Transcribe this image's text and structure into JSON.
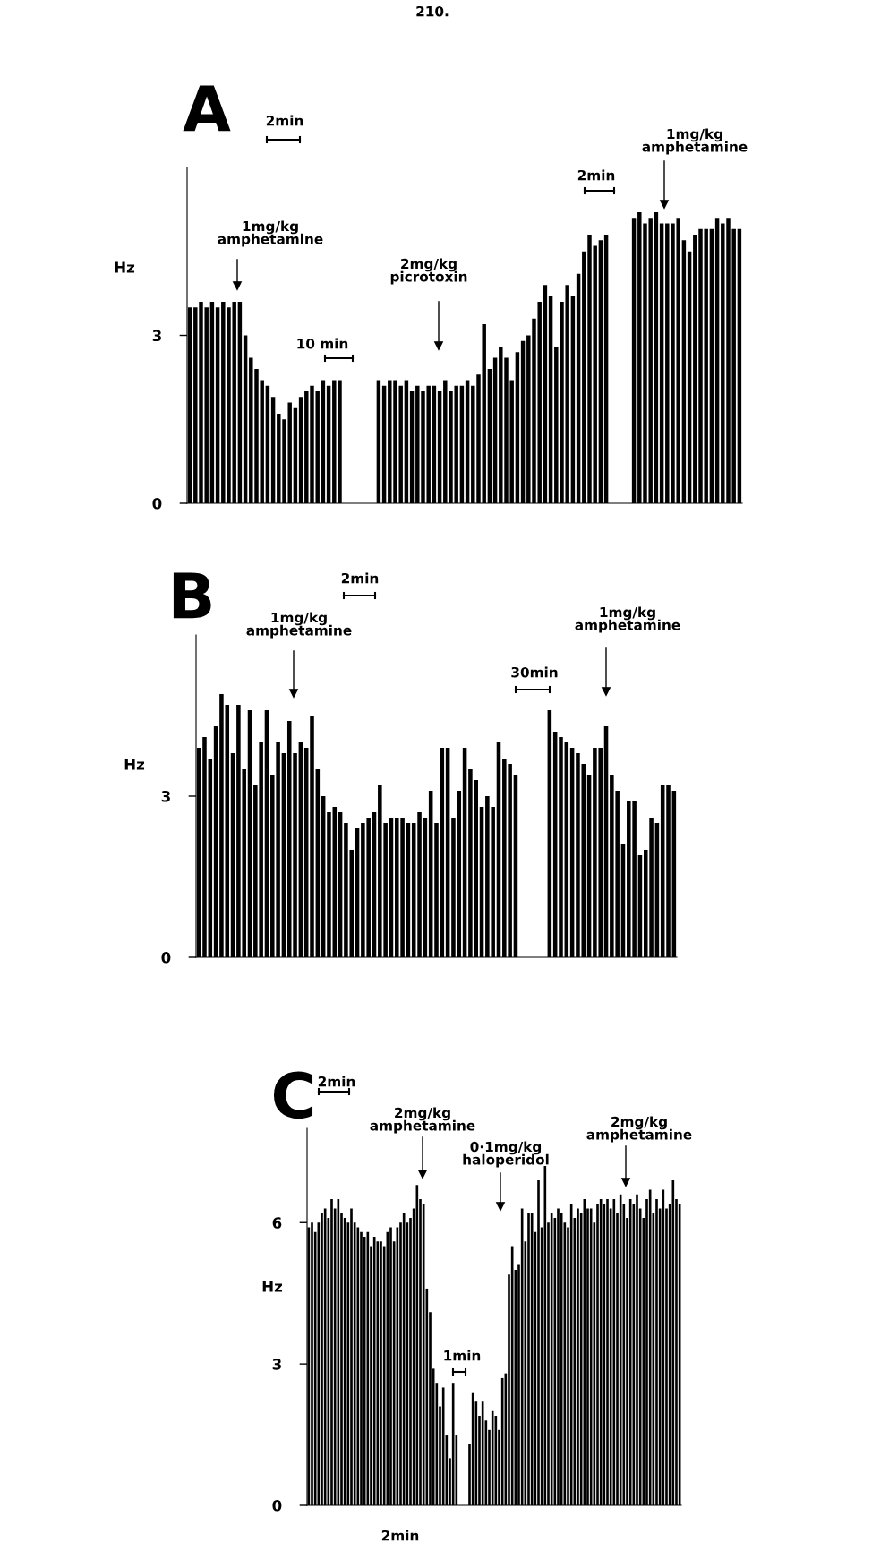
{
  "chart_data": [
    {
      "type": "bar",
      "title": "A",
      "ylabel": "Hz",
      "color": "#000000",
      "ylim": [
        0,
        6
      ],
      "yticks": [
        0,
        3
      ],
      "tick_labels": "y",
      "annotations": [
        "210.",
        "2min",
        "1mg/kg\namphetamine",
        "10 min",
        "2mg/kg\npicrotoxin",
        "2min",
        "1mg/kg\namphetamine"
      ],
      "categories": [
        null,
        null,
        null,
        null,
        null,
        null,
        null,
        null,
        null,
        null,
        null,
        null,
        null,
        null,
        null,
        null,
        null,
        null,
        null,
        null,
        null,
        null,
        null,
        null,
        null,
        null,
        null,
        null,
        null,
        null,
        null,
        null,
        null,
        null,
        null,
        null,
        null,
        null,
        null,
        null,
        null,
        null,
        null,
        null,
        null,
        null,
        null,
        null,
        null,
        null,
        null,
        null,
        null,
        null,
        null,
        null,
        null,
        null,
        null,
        null,
        null,
        null,
        null,
        null,
        null,
        null,
        null,
        null,
        null,
        null,
        null,
        null,
        null,
        null,
        null,
        null,
        null,
        null,
        null,
        null,
        null,
        null,
        null,
        null,
        null,
        null,
        null,
        null,
        null,
        null,
        null,
        null,
        null,
        null,
        null,
        null,
        null,
        null,
        null,
        null
      ],
      "values": [
        3.5,
        3.5,
        3.6,
        3.5,
        3.6,
        3.5,
        3.6,
        3.5,
        3.6,
        3.6,
        3.0,
        2.6,
        2.4,
        2.2,
        2.1,
        1.9,
        1.6,
        1.5,
        1.8,
        1.7,
        1.9,
        2.0,
        2.1,
        2.0,
        2.2,
        2.1,
        2.2,
        2.2,
        null,
        null,
        null,
        null,
        null,
        null,
        2.2,
        2.1,
        2.2,
        2.2,
        2.1,
        2.2,
        2.0,
        2.1,
        2.0,
        2.1,
        2.1,
        2.0,
        2.2,
        2.0,
        2.1,
        2.1,
        2.2,
        2.1,
        2.3,
        3.2,
        2.4,
        2.6,
        2.8,
        2.6,
        2.2,
        2.7,
        2.9,
        3.0,
        3.3,
        3.6,
        3.9,
        3.7,
        2.8,
        3.6,
        3.9,
        3.7,
        4.1,
        4.5,
        4.8,
        4.6,
        4.7,
        4.8,
        null,
        null,
        null,
        null,
        5.1,
        5.2,
        5.0,
        5.1,
        5.2,
        5.0,
        5.0,
        5.0,
        5.1,
        4.7,
        4.5,
        4.8,
        4.9,
        4.9,
        4.9,
        5.1,
        5.0,
        5.1,
        4.9,
        4.9
      ]
    },
    {
      "type": "bar",
      "title": "B",
      "ylabel": "Hz",
      "color": "#000000",
      "ylim": [
        0,
        6
      ],
      "yticks": [
        0,
        3
      ],
      "tick_labels": "y",
      "annotations": [
        "2min",
        "1mg/kg\namphetamine",
        "30min",
        "1mg/kg\namphetamine"
      ],
      "categories": [
        null,
        null,
        null,
        null,
        null,
        null,
        null,
        null,
        null,
        null,
        null,
        null,
        null,
        null,
        null,
        null,
        null,
        null,
        null,
        null,
        null,
        null,
        null,
        null,
        null,
        null,
        null,
        null,
        null,
        null,
        null,
        null,
        null,
        null,
        null,
        null,
        null,
        null,
        null,
        null,
        null,
        null,
        null,
        null,
        null,
        null,
        null,
        null,
        null,
        null,
        null,
        null,
        null,
        null,
        null,
        null,
        null,
        null,
        null,
        null,
        null,
        null,
        null,
        null,
        null,
        null,
        null,
        null,
        null,
        null,
        null,
        null,
        null,
        null,
        null,
        null,
        null,
        null,
        null,
        null,
        null,
        null,
        null,
        null,
        null
      ],
      "values": [
        3.9,
        4.1,
        3.7,
        4.3,
        4.9,
        4.7,
        3.8,
        4.7,
        3.5,
        4.6,
        3.2,
        4.0,
        4.6,
        3.4,
        4.0,
        3.8,
        4.4,
        3.8,
        4.0,
        3.9,
        4.5,
        3.5,
        3.0,
        2.7,
        2.8,
        2.7,
        2.5,
        2.0,
        2.4,
        2.5,
        2.6,
        2.7,
        3.2,
        2.5,
        2.6,
        2.6,
        2.6,
        2.5,
        2.5,
        2.7,
        2.6,
        3.1,
        2.5,
        3.9,
        3.9,
        2.6,
        3.1,
        3.9,
        3.5,
        3.3,
        2.8,
        3.0,
        2.8,
        4.0,
        3.7,
        3.6,
        3.4,
        null,
        null,
        null,
        null,
        null,
        4.6,
        4.2,
        4.1,
        4.0,
        3.9,
        3.8,
        3.6,
        3.4,
        3.9,
        3.9,
        4.3,
        3.4,
        3.1,
        2.1,
        2.9,
        2.9,
        1.9,
        2.0,
        2.6,
        2.5,
        3.2,
        3.2,
        3.1
      ]
    },
    {
      "type": "bar",
      "title": "C",
      "ylabel": "Hz",
      "color": "#000000",
      "ylim": [
        0,
        8
      ],
      "yticks": [
        0,
        3,
        6
      ],
      "tick_labels": "y",
      "annotations": [
        "2min",
        "2mg/kg\namphetamine",
        "0·1mg/kg\nhaloperidol",
        "2mg/kg\namphetamine",
        "1min",
        "2min"
      ],
      "categories": [
        null,
        null,
        null,
        null,
        null,
        null,
        null,
        null,
        null,
        null,
        null,
        null,
        null,
        null,
        null,
        null,
        null,
        null,
        null,
        null,
        null,
        null,
        null,
        null,
        null,
        null,
        null,
        null,
        null,
        null,
        null,
        null,
        null,
        null,
        null,
        null,
        null,
        null,
        null,
        null,
        null,
        null,
        null,
        null,
        null,
        null,
        null,
        null,
        null,
        null,
        null,
        null,
        null,
        null,
        null,
        null,
        null,
        null,
        null,
        null,
        null,
        null,
        null,
        null,
        null,
        null,
        null,
        null,
        null,
        null,
        null,
        null,
        null,
        null,
        null,
        null,
        null,
        null,
        null,
        null,
        null,
        null,
        null,
        null,
        null,
        null,
        null,
        null,
        null,
        null,
        null,
        null,
        null,
        null,
        null,
        null,
        null,
        null,
        null,
        null,
        null,
        null,
        null,
        null,
        null,
        null,
        null,
        null,
        null,
        null,
        null,
        null,
        null,
        null
      ],
      "values": [
        5.9,
        6.0,
        5.8,
        6.0,
        6.2,
        6.3,
        6.1,
        6.5,
        6.3,
        6.5,
        6.2,
        6.1,
        6.0,
        6.3,
        6.0,
        5.9,
        5.8,
        5.7,
        5.8,
        5.5,
        5.7,
        5.6,
        5.6,
        5.5,
        5.8,
        5.9,
        5.6,
        5.9,
        6.0,
        6.2,
        6.0,
        6.1,
        6.3,
        6.8,
        6.5,
        6.4,
        4.6,
        4.1,
        2.9,
        2.6,
        2.1,
        2.5,
        1.5,
        1.0,
        2.6,
        1.5,
        null,
        null,
        null,
        1.3,
        2.4,
        2.2,
        1.9,
        2.2,
        1.8,
        1.6,
        2.0,
        1.9,
        1.6,
        2.7,
        2.8,
        4.9,
        5.5,
        5.0,
        5.1,
        6.3,
        5.6,
        6.2,
        6.2,
        5.8,
        6.9,
        5.9,
        7.2,
        6.0,
        6.2,
        6.1,
        6.3,
        6.2,
        6.0,
        5.9,
        6.4,
        6.1,
        6.3,
        6.2,
        6.5,
        6.3,
        6.3,
        6.0,
        6.4,
        6.5,
        6.4,
        6.5,
        6.3,
        6.5,
        6.2,
        6.6,
        6.4,
        6.1,
        6.5,
        6.4,
        6.6,
        6.3,
        6.1,
        6.5,
        6.7,
        6.2,
        6.5,
        6.3,
        6.7,
        6.3,
        6.4,
        6.9,
        6.5,
        6.4
      ]
    }
  ]
}
